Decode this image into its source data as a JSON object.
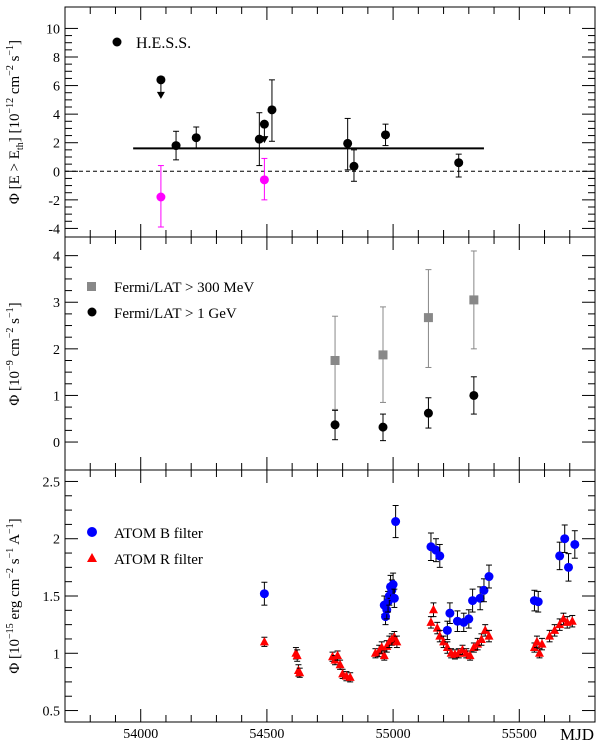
{
  "figure": {
    "xlabel": "MJD",
    "x_ticks": [
      "54000",
      "54500",
      "55000",
      "55500"
    ]
  },
  "chart_data": [
    {
      "type": "scatter",
      "panel": "top",
      "xlim": [
        53700,
        55800
      ],
      "ylim": [
        -4.6,
        11.5
      ],
      "y_ticks": [
        -4,
        -2,
        0,
        2,
        4,
        6,
        8,
        10
      ],
      "ylabel": "Φ [E > E_th] [10^-12 cm^-2 s^-1]",
      "ylabel_parts": {
        "phi": "Φ [E > E",
        "sub": "th",
        "mid": "] [10",
        "exp1": "−12",
        "cm": " cm",
        "exp2": "−2",
        "s": " s",
        "exp3": "−1",
        "close": "]"
      },
      "legend_position": "top-left",
      "fit_line": {
        "x": [
          53970,
          55360
        ],
        "y": 1.6
      },
      "zero_line": 0,
      "series": [
        {
          "name": "H.E.S.S.",
          "color": "#000000",
          "marker": "circle",
          "points": [
            {
              "x": 54140,
              "y": 1.8,
              "lo": 0.8,
              "hi": 2.8
            },
            {
              "x": 54220,
              "y": 2.35,
              "lo": 1.6,
              "hi": 3.1
            },
            {
              "x": 54470,
              "y": 2.25,
              "lo": 0.4,
              "hi": 4.1
            },
            {
              "x": 54520,
              "y": 4.3,
              "lo": 2.1,
              "hi": 6.4
            },
            {
              "x": 54820,
              "y": 1.95,
              "lo": 0.1,
              "hi": 3.7
            },
            {
              "x": 54845,
              "y": 0.35,
              "lo": -0.7,
              "hi": 1.5
            },
            {
              "x": 54970,
              "y": 2.55,
              "lo": 1.8,
              "hi": 3.3
            },
            {
              "x": 55260,
              "y": 0.6,
              "lo": -0.4,
              "hi": 1.2
            }
          ],
          "upper_limits": [
            {
              "x": 54080,
              "y": 6.4
            },
            {
              "x": 54490,
              "y": 3.3
            }
          ]
        },
        {
          "name": "",
          "color": "#ff00ff",
          "marker": "circle",
          "points": [
            {
              "x": 54080,
              "y": -1.8,
              "lo": -3.9,
              "hi": 0.4
            },
            {
              "x": 54490,
              "y": -0.6,
              "lo": -2.0,
              "hi": 0.9
            }
          ]
        }
      ]
    },
    {
      "type": "scatter",
      "panel": "middle",
      "xlim": [
        53700,
        55800
      ],
      "ylim": [
        -0.6,
        4.4
      ],
      "y_ticks": [
        0,
        1,
        2,
        3,
        4
      ],
      "ylabel": "Φ [10^-9 cm^-2 s^-1]",
      "ylabel_parts": {
        "phi": "Φ [10",
        "exp1": "−9",
        "cm": " cm",
        "exp2": "−2",
        "s": " s",
        "exp3": "−1",
        "close": "]"
      },
      "legend_position": "left",
      "series": [
        {
          "name": "Fermi/LAT > 300 MeV",
          "color": "#888888",
          "marker": "square",
          "points": [
            {
              "x": 54770,
              "y": 1.75,
              "lo": 0.7,
              "hi": 2.7
            },
            {
              "x": 54960,
              "y": 1.87,
              "lo": 0.85,
              "hi": 2.9
            },
            {
              "x": 55140,
              "y": 2.67,
              "lo": 1.6,
              "hi": 3.7
            },
            {
              "x": 55320,
              "y": 3.05,
              "lo": 2.0,
              "hi": 4.1
            }
          ]
        },
        {
          "name": "Fermi/LAT > 1 GeV",
          "color": "#000000",
          "marker": "circle",
          "points": [
            {
              "x": 54770,
              "y": 0.37,
              "lo": 0.05,
              "hi": 0.68
            },
            {
              "x": 54960,
              "y": 0.32,
              "lo": 0.03,
              "hi": 0.6
            },
            {
              "x": 55140,
              "y": 0.62,
              "lo": 0.3,
              "hi": 0.95
            },
            {
              "x": 55320,
              "y": 1.0,
              "lo": 0.6,
              "hi": 1.4
            }
          ]
        }
      ]
    },
    {
      "type": "scatter",
      "panel": "bottom",
      "xlim": [
        53700,
        55800
      ],
      "ylim": [
        0.4,
        2.6
      ],
      "y_ticks": [
        0.5,
        1,
        1.5,
        2,
        2.5
      ],
      "y_tick_labels": [
        "0.5",
        "1",
        "1.5",
        "2",
        "2.5"
      ],
      "ylabel": "Φ [10^-15 erg cm^-2 s^-1 A^-1]",
      "ylabel_parts": {
        "phi": "Φ [10",
        "exp1": "−15",
        "erg": " erg cm",
        "exp2": "−2",
        "s": " s",
        "exp3": "−1",
        "a": " A",
        "exp4": "−1",
        "close": "]"
      },
      "legend_position": "left",
      "series": [
        {
          "name": "ATOM B filter",
          "color": "#0000ff",
          "marker": "circle",
          "points": [
            {
              "x": 54490,
              "y": 1.52,
              "e": 0.1
            },
            {
              "x": 54965,
              "y": 1.42,
              "e": 0.08
            },
            {
              "x": 54970,
              "y": 1.32,
              "e": 0.07
            },
            {
              "x": 54975,
              "y": 1.38,
              "e": 0.08
            },
            {
              "x": 54980,
              "y": 1.45,
              "e": 0.09
            },
            {
              "x": 54985,
              "y": 1.5,
              "e": 0.08
            },
            {
              "x": 54990,
              "y": 1.58,
              "e": 0.1
            },
            {
              "x": 54995,
              "y": 1.55,
              "e": 0.09
            },
            {
              "x": 55000,
              "y": 1.6,
              "e": 0.1
            },
            {
              "x": 55005,
              "y": 1.48,
              "e": 0.08
            },
            {
              "x": 55010,
              "y": 2.15,
              "e": 0.14
            },
            {
              "x": 55150,
              "y": 1.93,
              "e": 0.12
            },
            {
              "x": 55170,
              "y": 1.9,
              "e": 0.1
            },
            {
              "x": 55185,
              "y": 1.85,
              "e": 0.1
            },
            {
              "x": 55215,
              "y": 1.2,
              "e": 0.08
            },
            {
              "x": 55225,
              "y": 1.35,
              "e": 0.09
            },
            {
              "x": 55255,
              "y": 1.28,
              "e": 0.09
            },
            {
              "x": 55280,
              "y": 1.27,
              "e": 0.08
            },
            {
              "x": 55300,
              "y": 1.3,
              "e": 0.08
            },
            {
              "x": 55315,
              "y": 1.46,
              "e": 0.1
            },
            {
              "x": 55345,
              "y": 1.48,
              "e": 0.1
            },
            {
              "x": 55360,
              "y": 1.55,
              "e": 0.1
            },
            {
              "x": 55380,
              "y": 1.67,
              "e": 0.1
            },
            {
              "x": 55560,
              "y": 1.46,
              "e": 0.09
            },
            {
              "x": 55575,
              "y": 1.45,
              "e": 0.09
            },
            {
              "x": 55660,
              "y": 1.85,
              "e": 0.12
            },
            {
              "x": 55680,
              "y": 2.0,
              "e": 0.12
            },
            {
              "x": 55695,
              "y": 1.75,
              "e": 0.12
            },
            {
              "x": 55720,
              "y": 1.95,
              "e": 0.12
            }
          ]
        },
        {
          "name": "ATOM R filter",
          "color": "#ff0000",
          "marker": "triangle",
          "points": [
            {
              "x": 54490,
              "y": 1.1,
              "e": 0.04
            },
            {
              "x": 54615,
              "y": 1.0,
              "e": 0.05
            },
            {
              "x": 54620,
              "y": 0.98,
              "e": 0.05
            },
            {
              "x": 54625,
              "y": 0.85,
              "e": 0.05
            },
            {
              "x": 54630,
              "y": 0.83,
              "e": 0.04
            },
            {
              "x": 54760,
              "y": 0.97,
              "e": 0.04
            },
            {
              "x": 54770,
              "y": 0.94,
              "e": 0.04
            },
            {
              "x": 54780,
              "y": 0.98,
              "e": 0.04
            },
            {
              "x": 54790,
              "y": 0.9,
              "e": 0.04
            },
            {
              "x": 54800,
              "y": 0.82,
              "e": 0.04
            },
            {
              "x": 54815,
              "y": 0.8,
              "e": 0.04
            },
            {
              "x": 54830,
              "y": 0.79,
              "e": 0.04
            },
            {
              "x": 54930,
              "y": 1.0,
              "e": 0.04
            },
            {
              "x": 54945,
              "y": 1.02,
              "e": 0.05
            },
            {
              "x": 54955,
              "y": 1.05,
              "e": 0.05
            },
            {
              "x": 54965,
              "y": 0.98,
              "e": 0.04
            },
            {
              "x": 54975,
              "y": 1.06,
              "e": 0.05
            },
            {
              "x": 54985,
              "y": 1.1,
              "e": 0.05
            },
            {
              "x": 54995,
              "y": 1.12,
              "e": 0.05
            },
            {
              "x": 55005,
              "y": 1.14,
              "e": 0.05
            },
            {
              "x": 55015,
              "y": 1.1,
              "e": 0.05
            },
            {
              "x": 55150,
              "y": 1.27,
              "e": 0.05
            },
            {
              "x": 55160,
              "y": 1.38,
              "e": 0.06
            },
            {
              "x": 55175,
              "y": 1.22,
              "e": 0.05
            },
            {
              "x": 55185,
              "y": 1.15,
              "e": 0.05
            },
            {
              "x": 55200,
              "y": 1.1,
              "e": 0.05
            },
            {
              "x": 55215,
              "y": 1.05,
              "e": 0.05
            },
            {
              "x": 55230,
              "y": 1.0,
              "e": 0.04
            },
            {
              "x": 55245,
              "y": 0.99,
              "e": 0.04
            },
            {
              "x": 55260,
              "y": 1.0,
              "e": 0.04
            },
            {
              "x": 55275,
              "y": 1.03,
              "e": 0.04
            },
            {
              "x": 55290,
              "y": 1.0,
              "e": 0.04
            },
            {
              "x": 55305,
              "y": 0.98,
              "e": 0.04
            },
            {
              "x": 55320,
              "y": 1.05,
              "e": 0.04
            },
            {
              "x": 55335,
              "y": 1.08,
              "e": 0.05
            },
            {
              "x": 55350,
              "y": 1.12,
              "e": 0.05
            },
            {
              "x": 55365,
              "y": 1.2,
              "e": 0.05
            },
            {
              "x": 55380,
              "y": 1.15,
              "e": 0.05
            },
            {
              "x": 55560,
              "y": 1.05,
              "e": 0.04
            },
            {
              "x": 55570,
              "y": 1.1,
              "e": 0.05
            },
            {
              "x": 55580,
              "y": 1.0,
              "e": 0.04
            },
            {
              "x": 55590,
              "y": 1.08,
              "e": 0.05
            },
            {
              "x": 55620,
              "y": 1.15,
              "e": 0.05
            },
            {
              "x": 55640,
              "y": 1.2,
              "e": 0.05
            },
            {
              "x": 55660,
              "y": 1.25,
              "e": 0.05
            },
            {
              "x": 55675,
              "y": 1.3,
              "e": 0.05
            },
            {
              "x": 55690,
              "y": 1.27,
              "e": 0.05
            },
            {
              "x": 55710,
              "y": 1.28,
              "e": 0.05
            }
          ]
        }
      ]
    }
  ]
}
